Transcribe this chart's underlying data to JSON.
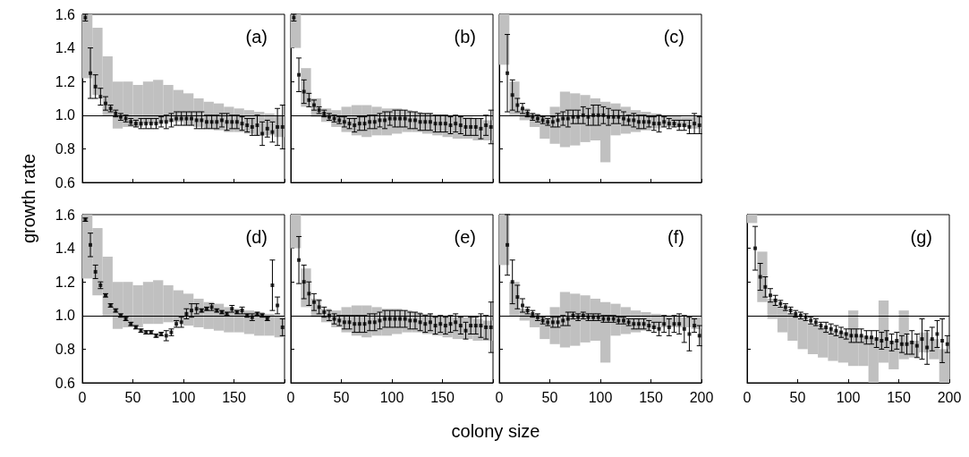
{
  "chart_data": [
    {
      "type": "scatter",
      "title": "(a)",
      "xlim": [
        0,
        200
      ],
      "xticks": [
        0,
        50,
        100,
        150,
        200
      ],
      "ylim": [
        0.6,
        1.6
      ],
      "yticks": [
        {
          "value": 0.6,
          "label": "0.6"
        },
        {
          "value": 0.8,
          "label": "0.8"
        },
        {
          "value": 1,
          "label": "1.0"
        },
        {
          "value": 1.2,
          "label": "1.2"
        },
        {
          "value": 1.4,
          "label": "1.4"
        },
        {
          "value": 1.6,
          "label": "1.6"
        }
      ],
      "tick_labels": "y",
      "marker": "square",
      "ref_lines": [
        {
          "axis": "y",
          "value": 1
        }
      ],
      "series": [
        {
          "type": "bar",
          "color": "#c0c0c0",
          "x": [
            5,
            15,
            25,
            35,
            45,
            55,
            65,
            75,
            85,
            95,
            105,
            115,
            125,
            135,
            145,
            155,
            165,
            175,
            185,
            195
          ],
          "base": [
            1.22,
            1.12,
            1.0,
            0.92,
            0.93,
            0.93,
            0.95,
            0.95,
            0.96,
            0.96,
            0.94,
            0.93,
            0.92,
            0.91,
            0.9,
            0.9,
            0.89,
            0.88,
            0.88,
            0.87
          ],
          "values": [
            0.38,
            0.4,
            0.35,
            0.28,
            0.27,
            0.25,
            0.25,
            0.26,
            0.22,
            0.19,
            0.19,
            0.17,
            0.16,
            0.16,
            0.15,
            0.14,
            0.14,
            0.14,
            0.13,
            0.13
          ]
        },
        {
          "type": "scatter",
          "color": "#000000",
          "x": [
            3,
            8,
            13,
            18,
            23,
            28,
            33,
            38,
            43,
            48,
            53,
            58,
            63,
            68,
            73,
            78,
            83,
            88,
            93,
            98,
            103,
            108,
            113,
            118,
            123,
            128,
            133,
            138,
            143,
            148,
            153,
            158,
            163,
            168,
            173,
            178,
            183,
            188,
            193,
            198
          ],
          "values": [
            1.58,
            1.25,
            1.17,
            1.11,
            1.07,
            1.04,
            1.01,
            0.99,
            0.98,
            0.96,
            0.95,
            0.95,
            0.95,
            0.95,
            0.95,
            0.96,
            0.96,
            0.97,
            0.98,
            0.98,
            0.98,
            0.98,
            0.97,
            0.97,
            0.96,
            0.96,
            0.96,
            0.97,
            0.96,
            0.96,
            0.96,
            0.95,
            0.94,
            0.93,
            0.94,
            0.89,
            0.92,
            0.9,
            0.93,
            0.93
          ],
          "errors": [
            0.02,
            0.15,
            0.07,
            0.05,
            0.04,
            0.02,
            0.02,
            0.02,
            0.02,
            0.02,
            0.02,
            0.03,
            0.03,
            0.03,
            0.03,
            0.03,
            0.04,
            0.04,
            0.04,
            0.04,
            0.04,
            0.04,
            0.05,
            0.05,
            0.04,
            0.04,
            0.04,
            0.04,
            0.05,
            0.04,
            0.04,
            0.04,
            0.04,
            0.05,
            0.06,
            0.07,
            0.05,
            0.06,
            0.11,
            0.13
          ]
        }
      ]
    },
    {
      "type": "scatter",
      "title": "(b)",
      "xlim": [
        0,
        200
      ],
      "xticks": [
        0,
        50,
        100,
        150,
        200
      ],
      "ylim": [
        0.6,
        1.6
      ],
      "yticks": [
        0.6,
        0.8,
        1,
        1.2,
        1.4,
        1.6
      ],
      "tick_labels": false,
      "marker": "square",
      "ref_lines": [
        {
          "axis": "y",
          "value": 1
        }
      ],
      "series": [
        {
          "type": "bar",
          "color": "#c0c0c0",
          "x": [
            5,
            15,
            25,
            35,
            45,
            55,
            65,
            75,
            85,
            95,
            105,
            115,
            125,
            135,
            145,
            155,
            165,
            175,
            185,
            195
          ],
          "base": [
            1.4,
            1.05,
            0.99,
            0.96,
            0.93,
            0.9,
            0.88,
            0.87,
            0.88,
            0.88,
            0.89,
            0.9,
            0.9,
            0.89,
            0.88,
            0.87,
            0.86,
            0.86,
            0.85,
            0.85
          ],
          "values": [
            0.2,
            0.23,
            0.11,
            0.08,
            0.1,
            0.15,
            0.18,
            0.19,
            0.17,
            0.16,
            0.15,
            0.13,
            0.12,
            0.12,
            0.12,
            0.13,
            0.13,
            0.13,
            0.13,
            0.12
          ]
        },
        {
          "type": "scatter",
          "color": "#000000",
          "x": [
            3,
            8,
            13,
            18,
            23,
            28,
            33,
            38,
            43,
            48,
            53,
            58,
            63,
            68,
            73,
            78,
            83,
            88,
            93,
            98,
            103,
            108,
            113,
            118,
            123,
            128,
            133,
            138,
            143,
            148,
            153,
            158,
            163,
            168,
            173,
            178,
            183,
            188,
            193,
            198
          ],
          "values": [
            1.58,
            1.24,
            1.14,
            1.09,
            1.06,
            1.03,
            1.01,
            0.99,
            0.98,
            0.97,
            0.96,
            0.95,
            0.94,
            0.95,
            0.95,
            0.96,
            0.96,
            0.97,
            0.97,
            0.98,
            0.98,
            0.98,
            0.98,
            0.97,
            0.97,
            0.96,
            0.96,
            0.96,
            0.95,
            0.95,
            0.95,
            0.94,
            0.95,
            0.94,
            0.93,
            0.93,
            0.93,
            0.92,
            0.94,
            0.93
          ],
          "errors": [
            0.02,
            0.1,
            0.07,
            0.04,
            0.03,
            0.02,
            0.02,
            0.02,
            0.02,
            0.02,
            0.03,
            0.03,
            0.04,
            0.04,
            0.04,
            0.04,
            0.04,
            0.04,
            0.05,
            0.04,
            0.05,
            0.05,
            0.05,
            0.05,
            0.05,
            0.05,
            0.05,
            0.05,
            0.05,
            0.05,
            0.05,
            0.05,
            0.05,
            0.05,
            0.05,
            0.05,
            0.05,
            0.06,
            0.06,
            0.1
          ]
        }
      ]
    },
    {
      "type": "scatter",
      "title": "(c)",
      "xlim": [
        0,
        200
      ],
      "xticks": [
        0,
        50,
        100,
        150,
        200
      ],
      "ylim": [
        0.6,
        1.6
      ],
      "yticks": [
        0.6,
        0.8,
        1,
        1.2,
        1.4,
        1.6
      ],
      "tick_labels": false,
      "marker": "square",
      "ref_lines": [
        {
          "axis": "y",
          "value": 1
        }
      ],
      "series": [
        {
          "type": "bar",
          "color": "#c0c0c0",
          "x": [
            5,
            15,
            25,
            35,
            45,
            55,
            65,
            75,
            85,
            95,
            105,
            115,
            125,
            135,
            145,
            155,
            165,
            175,
            185,
            195
          ],
          "base": [
            1.3,
            1.0,
            0.97,
            0.93,
            0.86,
            0.83,
            0.81,
            0.82,
            0.84,
            0.85,
            0.72,
            0.88,
            0.89,
            0.9,
            0.91,
            0.92,
            0.93,
            0.93,
            0.93,
            0.92
          ],
          "values": [
            0.3,
            0.2,
            0.07,
            0.08,
            0.14,
            0.22,
            0.33,
            0.31,
            0.28,
            0.25,
            0.36,
            0.19,
            0.16,
            0.13,
            0.11,
            0.09,
            0.07,
            0.07,
            0.06,
            0.07
          ]
        },
        {
          "type": "scatter",
          "color": "#000000",
          "x": [
            8,
            13,
            18,
            23,
            28,
            33,
            38,
            43,
            48,
            53,
            58,
            63,
            68,
            73,
            78,
            83,
            88,
            93,
            98,
            103,
            108,
            113,
            118,
            123,
            128,
            133,
            138,
            143,
            148,
            153,
            158,
            163,
            168,
            173,
            178,
            183,
            188,
            193,
            198
          ],
          "values": [
            1.25,
            1.12,
            1.06,
            1.04,
            1.01,
            0.99,
            0.98,
            0.97,
            0.96,
            0.96,
            0.97,
            0.98,
            0.98,
            0.99,
            0.99,
            1.0,
            0.99,
            1.0,
            1.0,
            1.0,
            0.99,
            0.99,
            0.99,
            0.98,
            0.97,
            0.97,
            0.96,
            0.96,
            0.96,
            0.95,
            0.95,
            0.96,
            0.95,
            0.95,
            0.94,
            0.94,
            0.93,
            0.95,
            0.94
          ],
          "errors": [
            0.23,
            0.09,
            0.04,
            0.03,
            0.02,
            0.02,
            0.02,
            0.02,
            0.02,
            0.03,
            0.04,
            0.04,
            0.05,
            0.04,
            0.04,
            0.05,
            0.05,
            0.06,
            0.06,
            0.05,
            0.05,
            0.04,
            0.04,
            0.04,
            0.03,
            0.04,
            0.04,
            0.04,
            0.03,
            0.04,
            0.05,
            0.03,
            0.03,
            0.02,
            0.03,
            0.03,
            0.04,
            0.06,
            0.05
          ]
        }
      ]
    },
    {
      "type": "scatter",
      "title": "(d)",
      "ylabel": "growth rate",
      "xlim": [
        0,
        200
      ],
      "xticks": [
        0,
        50,
        100,
        150,
        {
          "value": 200,
          "label": null
        }
      ],
      "ylim": [
        0.6,
        1.6
      ],
      "yticks": [
        {
          "value": 0.6,
          "label": "0.6"
        },
        {
          "value": 0.8,
          "label": "0.8"
        },
        {
          "value": 1,
          "label": "1.0"
        },
        {
          "value": 1.2,
          "label": "1.2"
        },
        {
          "value": 1.4,
          "label": "1.4"
        },
        {
          "value": 1.6,
          "label": "1.6"
        }
      ],
      "marker": "square",
      "ref_lines": [
        {
          "axis": "y",
          "value": 1
        }
      ],
      "series": [
        {
          "type": "bar",
          "color": "#c0c0c0",
          "x": [
            5,
            15,
            25,
            35,
            45,
            55,
            65,
            75,
            85,
            95,
            105,
            115,
            125,
            135,
            145,
            155,
            165,
            175,
            185,
            195
          ],
          "base": [
            1.22,
            1.12,
            1.0,
            0.92,
            0.93,
            0.93,
            0.95,
            0.95,
            0.96,
            0.96,
            0.94,
            0.93,
            0.92,
            0.91,
            0.9,
            0.9,
            0.89,
            0.88,
            0.88,
            0.87
          ],
          "values": [
            0.38,
            0.4,
            0.35,
            0.28,
            0.27,
            0.25,
            0.25,
            0.26,
            0.22,
            0.19,
            0.19,
            0.17,
            0.16,
            0.16,
            0.15,
            0.14,
            0.14,
            0.14,
            0.13,
            0.13
          ]
        },
        {
          "type": "scatter",
          "color": "#000000",
          "x": [
            3,
            8,
            13,
            18,
            23,
            28,
            33,
            38,
            43,
            48,
            53,
            58,
            63,
            68,
            73,
            78,
            83,
            88,
            93,
            98,
            103,
            108,
            113,
            118,
            123,
            128,
            133,
            138,
            143,
            148,
            153,
            158,
            163,
            168,
            173,
            178,
            183,
            188,
            193,
            198
          ],
          "values": [
            1.57,
            1.42,
            1.26,
            1.18,
            1.12,
            1.06,
            1.03,
            1.0,
            0.98,
            0.95,
            0.93,
            0.91,
            0.9,
            0.9,
            0.88,
            0.89,
            0.88,
            0.9,
            0.95,
            0.96,
            1.01,
            1.03,
            1.04,
            1.03,
            1.04,
            1.05,
            1.03,
            1.02,
            1.01,
            1.04,
            1.02,
            1.03,
            1.0,
            0.99,
            1.01,
            1.0,
            0.98,
            1.18,
            1.06,
            0.93
          ],
          "errors": [
            0.01,
            0.07,
            0.04,
            0.02,
            0.01,
            0.01,
            0.01,
            0.01,
            0.01,
            0.01,
            0.01,
            0.01,
            0.01,
            0.01,
            0.01,
            0.01,
            0.03,
            0.02,
            0.02,
            0.03,
            0.03,
            0.04,
            0.03,
            0.01,
            0.01,
            0.02,
            0.01,
            0.01,
            0.01,
            0.02,
            0.01,
            0.02,
            0.01,
            0.02,
            0.01,
            0.01,
            0.01,
            0.15,
            0.05,
            0.05
          ]
        }
      ]
    },
    {
      "type": "scatter",
      "title": "(e)",
      "xlim": [
        0,
        200
      ],
      "xticks": [
        0,
        50,
        100,
        150,
        {
          "value": 200,
          "label": null
        }
      ],
      "ylim": [
        0.6,
        1.6
      ],
      "yticks": [
        0.6,
        0.8,
        1,
        1.2,
        1.4,
        1.6
      ],
      "tick_labels": "x",
      "marker": "square",
      "ref_lines": [
        {
          "axis": "y",
          "value": 1
        }
      ],
      "series": [
        {
          "type": "bar",
          "color": "#c0c0c0",
          "x": [
            5,
            15,
            25,
            35,
            45,
            55,
            65,
            75,
            85,
            95,
            105,
            115,
            125,
            135,
            145,
            155,
            165,
            175,
            185,
            195
          ],
          "base": [
            1.4,
            1.05,
            0.99,
            0.96,
            0.93,
            0.9,
            0.88,
            0.87,
            0.88,
            0.88,
            0.89,
            0.9,
            0.9,
            0.89,
            0.88,
            0.87,
            0.86,
            0.86,
            0.85,
            0.85
          ],
          "values": [
            0.2,
            0.23,
            0.11,
            0.08,
            0.1,
            0.15,
            0.18,
            0.19,
            0.17,
            0.16,
            0.15,
            0.13,
            0.12,
            0.12,
            0.12,
            0.13,
            0.13,
            0.13,
            0.13,
            0.12
          ]
        },
        {
          "type": "scatter",
          "color": "#000000",
          "x": [
            8,
            13,
            18,
            23,
            28,
            33,
            38,
            43,
            48,
            53,
            58,
            63,
            68,
            73,
            78,
            83,
            88,
            93,
            98,
            103,
            108,
            113,
            118,
            123,
            128,
            133,
            138,
            143,
            148,
            153,
            158,
            163,
            168,
            173,
            178,
            183,
            188,
            193,
            198
          ],
          "values": [
            1.33,
            1.2,
            1.13,
            1.08,
            1.05,
            1.02,
            1.0,
            0.98,
            0.97,
            0.96,
            0.96,
            0.95,
            0.95,
            0.95,
            0.96,
            0.96,
            0.97,
            0.98,
            0.98,
            0.98,
            0.98,
            0.98,
            0.97,
            0.97,
            0.96,
            0.95,
            0.96,
            0.94,
            0.95,
            0.94,
            0.95,
            0.96,
            0.94,
            0.91,
            0.94,
            0.94,
            0.94,
            0.93,
            0.93
          ],
          "errors": [
            0.14,
            0.1,
            0.07,
            0.05,
            0.04,
            0.03,
            0.03,
            0.03,
            0.03,
            0.04,
            0.04,
            0.05,
            0.05,
            0.05,
            0.05,
            0.05,
            0.05,
            0.05,
            0.05,
            0.05,
            0.05,
            0.05,
            0.05,
            0.05,
            0.05,
            0.05,
            0.05,
            0.05,
            0.05,
            0.05,
            0.05,
            0.05,
            0.05,
            0.05,
            0.05,
            0.05,
            0.07,
            0.07,
            0.15
          ]
        }
      ]
    },
    {
      "type": "scatter",
      "title": "(f)",
      "xlabel": "colony size",
      "xlim": [
        0,
        200
      ],
      "xticks": [
        0,
        50,
        100,
        150,
        200
      ],
      "ylim": [
        0.6,
        1.6
      ],
      "yticks": [
        0.6,
        0.8,
        1,
        1.2,
        1.4,
        1.6
      ],
      "tick_labels": "x",
      "marker": "square",
      "ref_lines": [
        {
          "axis": "y",
          "value": 1
        }
      ],
      "series": [
        {
          "type": "bar",
          "color": "#c0c0c0",
          "x": [
            5,
            15,
            25,
            35,
            45,
            55,
            65,
            75,
            85,
            95,
            105,
            115,
            125,
            135,
            145,
            155,
            165,
            175,
            185,
            195
          ],
          "base": [
            1.3,
            1.0,
            0.97,
            0.93,
            0.86,
            0.83,
            0.81,
            0.82,
            0.84,
            0.85,
            0.72,
            0.88,
            0.89,
            0.9,
            0.91,
            0.92,
            0.93,
            0.93,
            0.93,
            0.92
          ],
          "values": [
            0.3,
            0.2,
            0.07,
            0.08,
            0.14,
            0.22,
            0.33,
            0.31,
            0.28,
            0.25,
            0.36,
            0.19,
            0.16,
            0.13,
            0.11,
            0.09,
            0.07,
            0.07,
            0.06,
            0.07
          ]
        },
        {
          "type": "scatter",
          "color": "#000000",
          "x": [
            8,
            13,
            18,
            23,
            28,
            33,
            38,
            43,
            48,
            53,
            58,
            63,
            68,
            73,
            78,
            83,
            88,
            93,
            98,
            103,
            108,
            113,
            118,
            123,
            128,
            133,
            138,
            143,
            148,
            153,
            158,
            163,
            168,
            173,
            178,
            183,
            188,
            193,
            198
          ],
          "values": [
            1.42,
            1.2,
            1.11,
            1.06,
            1.03,
            1.01,
            0.99,
            0.97,
            0.96,
            0.96,
            0.96,
            0.97,
            0.98,
            1.0,
            0.99,
            1.0,
            0.99,
            0.99,
            0.99,
            0.98,
            0.98,
            0.98,
            0.97,
            0.97,
            0.96,
            0.95,
            0.95,
            0.95,
            0.94,
            0.93,
            0.92,
            0.95,
            0.93,
            0.95,
            0.95,
            0.92,
            0.89,
            0.94,
            0.88
          ],
          "errors": [
            0.18,
            0.13,
            0.07,
            0.04,
            0.02,
            0.02,
            0.02,
            0.02,
            0.02,
            0.03,
            0.03,
            0.03,
            0.04,
            0.02,
            0.02,
            0.02,
            0.02,
            0.02,
            0.02,
            0.02,
            0.02,
            0.02,
            0.02,
            0.02,
            0.02,
            0.03,
            0.03,
            0.03,
            0.03,
            0.03,
            0.04,
            0.05,
            0.05,
            0.05,
            0.06,
            0.08,
            0.1,
            0.04,
            0.06
          ]
        }
      ]
    },
    {
      "type": "scatter",
      "title": "(g)",
      "xlim": [
        0,
        200
      ],
      "xticks": [
        0,
        50,
        100,
        150,
        200
      ],
      "ylim": [
        0.6,
        1.6
      ],
      "yticks": [
        0.6,
        0.8,
        1,
        1.2,
        1.4,
        1.6
      ],
      "tick_labels": "x",
      "marker": "square",
      "ref_lines": [
        {
          "axis": "y",
          "value": 1
        }
      ],
      "series": [
        {
          "type": "bar",
          "color": "#c0c0c0",
          "x": [
            5,
            15,
            25,
            35,
            45,
            55,
            65,
            75,
            85,
            95,
            105,
            115,
            125,
            135,
            145,
            155,
            165,
            175,
            185,
            195
          ],
          "base": [
            1.55,
            1.08,
            0.98,
            0.9,
            0.85,
            0.8,
            0.77,
            0.75,
            0.73,
            0.72,
            0.7,
            0.7,
            0.6,
            0.72,
            0.68,
            0.74,
            0.75,
            0.78,
            0.74,
            0.6
          ],
          "values": [
            0.05,
            0.3,
            0.12,
            0.15,
            0.16,
            0.18,
            0.18,
            0.18,
            0.18,
            0.18,
            0.33,
            0.18,
            0.27,
            0.37,
            0.17,
            0.29,
            0.1,
            0.12,
            0.12,
            0.2
          ]
        },
        {
          "type": "scatter",
          "color": "#000000",
          "x": [
            8,
            13,
            18,
            23,
            28,
            33,
            38,
            43,
            48,
            53,
            58,
            63,
            68,
            73,
            78,
            83,
            88,
            93,
            98,
            103,
            108,
            113,
            118,
            123,
            128,
            133,
            138,
            143,
            148,
            153,
            158,
            163,
            168,
            173,
            178,
            183,
            188,
            193,
            198
          ],
          "values": [
            1.4,
            1.23,
            1.17,
            1.12,
            1.09,
            1.07,
            1.05,
            1.03,
            1.01,
            1.0,
            0.99,
            0.97,
            0.96,
            0.94,
            0.93,
            0.92,
            0.91,
            0.9,
            0.89,
            0.88,
            0.88,
            0.88,
            0.87,
            0.87,
            0.86,
            0.85,
            0.86,
            0.84,
            0.85,
            0.83,
            0.83,
            0.84,
            0.82,
            0.86,
            0.81,
            0.86,
            0.89,
            0.85,
            0.83
          ],
          "errors": [
            0.13,
            0.08,
            0.06,
            0.04,
            0.03,
            0.02,
            0.02,
            0.02,
            0.02,
            0.02,
            0.02,
            0.02,
            0.02,
            0.02,
            0.03,
            0.03,
            0.03,
            0.03,
            0.03,
            0.04,
            0.04,
            0.04,
            0.04,
            0.04,
            0.05,
            0.05,
            0.05,
            0.05,
            0.05,
            0.05,
            0.06,
            0.07,
            0.07,
            0.12,
            0.1,
            0.07,
            0.08,
            0.13,
            0.05
          ]
        }
      ]
    }
  ]
}
